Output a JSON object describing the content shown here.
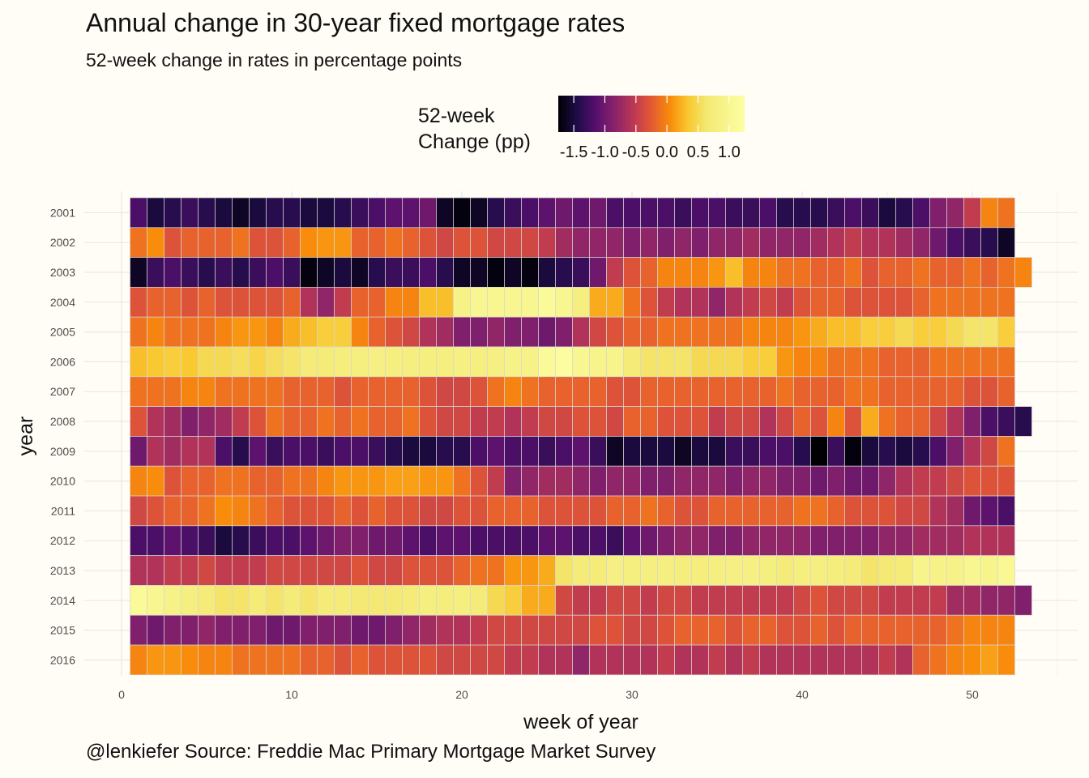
{
  "title": "Annual change in 30-year fixed mortgage rates",
  "subtitle": "52-week change in rates in percentage points",
  "caption": "@lenkiefer Source: Freddie Mac Primary Mortgage Market Survey",
  "legend": {
    "title_line1": "52-week",
    "title_line2": "Change (pp)",
    "labels": [
      "-1.5",
      "-1.0",
      "-0.5",
      "0.0",
      "0.5",
      "1.0"
    ],
    "palette": "inferno",
    "range": [
      -1.75,
      1.25
    ],
    "placement": "top"
  },
  "chart_data": {
    "type": "heatmap",
    "title": "Annual change in 30-year fixed mortgage rates",
    "subtitle": "52-week change in rates in percentage points",
    "xlabel": "week of year",
    "ylabel": "year",
    "x_ticks": [
      0,
      10,
      20,
      30,
      40,
      50
    ],
    "xlim": [
      0,
      55
    ],
    "grid": true,
    "colorbar_title": "52-week Change (pp)",
    "color_range": [
      -1.75,
      1.25
    ],
    "years": [
      "2001",
      "2002",
      "2003",
      "2004",
      "2005",
      "2006",
      "2007",
      "2008",
      "2009",
      "2010",
      "2011",
      "2012",
      "2013",
      "2014",
      "2015",
      "2016"
    ],
    "weeks_per_year": [
      52,
      52,
      53,
      52,
      52,
      52,
      52,
      53,
      52,
      52,
      52,
      52,
      52,
      53,
      52,
      52
    ],
    "series": [
      {
        "year": "2001",
        "values": [
          -1.2,
          -1.5,
          -1.4,
          -1.3,
          -1.4,
          -1.5,
          -1.6,
          -1.5,
          -1.4,
          -1.4,
          -1.5,
          -1.5,
          -1.4,
          -1.3,
          -1.2,
          -1.1,
          -1.1,
          -1.0,
          -1.6,
          -1.7,
          -1.6,
          -1.4,
          -1.3,
          -1.2,
          -1.1,
          -1.0,
          -1.1,
          -1.0,
          -1.2,
          -1.2,
          -1.2,
          -1.2,
          -1.3,
          -1.2,
          -1.2,
          -1.3,
          -1.3,
          -1.2,
          -1.4,
          -1.4,
          -1.4,
          -1.3,
          -1.2,
          -1.3,
          -1.5,
          -1.4,
          -1.2,
          -0.9,
          -0.8,
          -0.5,
          0.0,
          -0.1
        ]
      },
      {
        "year": "2002",
        "values": [
          -0.1,
          0.05,
          -0.3,
          -0.2,
          -0.2,
          -0.2,
          -0.1,
          -0.3,
          -0.3,
          -0.2,
          0.05,
          0.1,
          0.1,
          -0.2,
          -0.2,
          -0.1,
          -0.2,
          -0.3,
          -0.4,
          -0.3,
          -0.3,
          -0.4,
          -0.4,
          -0.4,
          -0.5,
          -0.7,
          -0.8,
          -0.8,
          -0.8,
          -0.9,
          -0.8,
          -0.9,
          -0.8,
          -0.9,
          -0.8,
          -0.8,
          -0.7,
          -0.8,
          -0.8,
          -0.8,
          -0.7,
          -0.6,
          -0.5,
          -0.6,
          -0.6,
          -0.7,
          -0.8,
          -1.0,
          -1.2,
          -1.3,
          -1.4,
          -1.6
        ]
      },
      {
        "year": "2003",
        "values": [
          -1.6,
          -1.3,
          -1.2,
          -1.3,
          -1.4,
          -1.3,
          -1.4,
          -1.3,
          -1.2,
          -1.3,
          -1.7,
          -1.6,
          -1.5,
          -1.6,
          -1.4,
          -1.3,
          -1.3,
          -1.2,
          -1.4,
          -1.6,
          -1.6,
          -1.7,
          -1.6,
          -1.7,
          -1.5,
          -1.4,
          -1.3,
          -1.0,
          -0.5,
          -0.3,
          -0.2,
          0.0,
          0.0,
          0.0,
          0.1,
          0.3,
          0.0,
          0.0,
          -0.1,
          -0.1,
          -0.2,
          -0.2,
          -0.1,
          -0.3,
          -0.2,
          -0.2,
          -0.1,
          -0.2,
          -0.2,
          -0.1,
          -0.2,
          -0.1,
          0.0
        ]
      },
      {
        "year": "2004",
        "values": [
          -0.3,
          -0.2,
          -0.2,
          -0.3,
          -0.2,
          -0.3,
          -0.3,
          -0.3,
          -0.3,
          -0.2,
          -0.6,
          -0.8,
          -0.5,
          -0.2,
          -0.2,
          0.0,
          0.0,
          0.3,
          0.3,
          0.9,
          1.0,
          1.0,
          1.0,
          1.0,
          1.1,
          1.0,
          0.8,
          0.2,
          0.2,
          -0.1,
          -0.3,
          -0.5,
          -0.6,
          -0.6,
          -0.8,
          -0.6,
          -0.5,
          -0.4,
          -0.5,
          -0.3,
          -0.2,
          -0.2,
          -0.3,
          -0.3,
          -0.3,
          -0.3,
          -0.2,
          -0.1,
          -0.1,
          -0.1,
          -0.1,
          -0.1
        ]
      },
      {
        "year": "2005",
        "values": [
          -0.1,
          0.0,
          -0.1,
          -0.1,
          -0.1,
          0.0,
          0.1,
          0.1,
          0.0,
          0.2,
          0.3,
          0.4,
          0.4,
          0.0,
          -0.2,
          -0.3,
          -0.4,
          -0.6,
          -0.7,
          -0.9,
          -0.9,
          -0.8,
          -0.9,
          -0.9,
          -1.0,
          -0.9,
          -0.6,
          -0.4,
          -0.3,
          -0.2,
          -0.2,
          -0.1,
          -0.1,
          -0.1,
          -0.1,
          -0.1,
          0.0,
          0.0,
          0.0,
          0.1,
          0.2,
          0.3,
          0.3,
          0.4,
          0.4,
          0.5,
          0.4,
          0.4,
          0.5,
          0.6,
          0.6,
          0.4
        ]
      },
      {
        "year": "2006",
        "values": [
          0.3,
          0.35,
          0.4,
          0.35,
          0.5,
          0.5,
          0.55,
          0.45,
          0.55,
          0.6,
          0.7,
          0.7,
          0.75,
          0.8,
          0.85,
          0.8,
          0.8,
          0.8,
          0.8,
          0.85,
          0.8,
          0.85,
          0.9,
          0.9,
          1.1,
          1.2,
          1.0,
          0.95,
          0.95,
          0.7,
          0.6,
          0.6,
          0.6,
          0.5,
          0.5,
          0.5,
          0.4,
          0.4,
          0.1,
          0.0,
          0.0,
          -0.1,
          -0.1,
          -0.1,
          -0.2,
          -0.2,
          -0.2,
          -0.1,
          -0.1,
          -0.1,
          -0.1,
          -0.1
        ]
      },
      {
        "year": "2007",
        "values": [
          -0.1,
          -0.1,
          -0.1,
          0.0,
          0.0,
          -0.1,
          -0.1,
          -0.1,
          -0.1,
          -0.2,
          -0.2,
          -0.2,
          -0.3,
          -0.2,
          -0.2,
          -0.2,
          -0.2,
          -0.3,
          -0.4,
          -0.4,
          -0.3,
          -0.1,
          0.0,
          -0.1,
          -0.2,
          -0.2,
          -0.2,
          -0.2,
          -0.3,
          -0.3,
          -0.2,
          -0.2,
          -0.2,
          -0.2,
          -0.2,
          -0.2,
          -0.2,
          -0.2,
          -0.1,
          -0.2,
          -0.2,
          -0.2,
          -0.1,
          -0.1,
          -0.2,
          -0.2,
          -0.2,
          -0.2,
          -0.2,
          -0.3,
          -0.3,
          -0.2
        ]
      },
      {
        "year": "2008",
        "values": [
          -0.3,
          -0.6,
          -0.7,
          -0.9,
          -0.8,
          -0.7,
          -0.5,
          -0.3,
          -0.1,
          -0.2,
          -0.2,
          -0.1,
          -0.2,
          -0.1,
          -0.2,
          -0.2,
          -0.1,
          -0.3,
          -0.4,
          -0.4,
          -0.5,
          -0.5,
          -0.6,
          -0.5,
          -0.4,
          -0.4,
          -0.3,
          -0.3,
          -0.4,
          -0.2,
          -0.2,
          -0.3,
          -0.3,
          -0.3,
          -0.5,
          -0.4,
          -0.4,
          -0.6,
          -0.4,
          -0.2,
          -0.3,
          0.0,
          -0.3,
          0.2,
          -0.1,
          -0.2,
          -0.2,
          -0.4,
          -0.6,
          -0.9,
          -1.2,
          -1.3,
          -1.4
        ]
      },
      {
        "year": "2009",
        "values": [
          -1.0,
          -0.6,
          -0.7,
          -0.6,
          -0.6,
          -1.2,
          -1.4,
          -1.1,
          -1.3,
          -1.2,
          -1.2,
          -1.3,
          -1.2,
          -1.2,
          -1.3,
          -1.4,
          -1.5,
          -1.5,
          -1.4,
          -1.4,
          -1.2,
          -1.1,
          -1.2,
          -1.2,
          -1.3,
          -1.2,
          -1.1,
          -1.3,
          -1.6,
          -1.5,
          -1.5,
          -1.5,
          -1.6,
          -1.5,
          -1.5,
          -1.3,
          -1.3,
          -1.2,
          -1.2,
          -1.4,
          -1.75,
          -1.3,
          -1.7,
          -1.5,
          -1.4,
          -1.5,
          -1.4,
          -1.2,
          -0.9,
          -0.6,
          -0.4,
          -0.1
        ]
      },
      {
        "year": "2010",
        "values": [
          0.0,
          0.05,
          -0.3,
          -0.2,
          -0.2,
          -0.1,
          -0.1,
          -0.2,
          -0.2,
          -0.1,
          -0.1,
          0.0,
          0.1,
          0.1,
          0.1,
          0.15,
          0.15,
          0.1,
          0.1,
          -0.1,
          -0.3,
          -0.5,
          -0.9,
          -0.8,
          -0.7,
          -0.7,
          -0.8,
          -0.9,
          -0.8,
          -0.8,
          -0.9,
          -0.9,
          -0.8,
          -0.8,
          -0.8,
          -0.9,
          -0.8,
          -0.8,
          -0.9,
          -0.9,
          -1.0,
          -0.9,
          -1.0,
          -1.0,
          -0.8,
          -0.6,
          -0.5,
          -0.5,
          -0.4,
          -0.3,
          -0.3,
          -0.3
        ]
      },
      {
        "year": "2011",
        "values": [
          -0.4,
          -0.3,
          -0.2,
          -0.2,
          -0.1,
          0.05,
          0.0,
          -0.1,
          -0.2,
          -0.3,
          -0.3,
          -0.3,
          -0.2,
          -0.3,
          -0.2,
          -0.3,
          -0.3,
          -0.4,
          -0.4,
          -0.3,
          -0.3,
          -0.2,
          -0.2,
          -0.2,
          -0.3,
          -0.3,
          -0.3,
          -0.3,
          -0.2,
          -0.2,
          -0.1,
          -0.2,
          -0.3,
          -0.3,
          -0.2,
          -0.2,
          -0.2,
          -0.2,
          -0.2,
          -0.1,
          -0.1,
          -0.2,
          -0.3,
          -0.3,
          -0.3,
          -0.4,
          -0.4,
          -0.6,
          -0.7,
          -1.0,
          -1.1,
          -1.2
        ]
      },
      {
        "year": "2012",
        "values": [
          -1.2,
          -1.2,
          -1.1,
          -1.2,
          -1.3,
          -1.5,
          -1.4,
          -1.3,
          -1.2,
          -1.2,
          -1.1,
          -1.0,
          -0.9,
          -0.9,
          -1.0,
          -1.0,
          -1.1,
          -1.2,
          -1.1,
          -1.1,
          -1.2,
          -1.2,
          -1.2,
          -1.2,
          -1.1,
          -1.1,
          -1.2,
          -1.2,
          -1.3,
          -1.1,
          -1.0,
          -0.9,
          -0.8,
          -0.8,
          -0.9,
          -0.9,
          -0.8,
          -0.8,
          -0.8,
          -0.8,
          -0.9,
          -0.9,
          -0.9,
          -0.9,
          -0.8,
          -0.8,
          -0.7,
          -0.7,
          -0.7,
          -0.6,
          -0.6,
          -0.6
        ]
      },
      {
        "year": "2013",
        "values": [
          -0.6,
          -0.6,
          -0.5,
          -0.5,
          -0.4,
          -0.5,
          -0.5,
          -0.5,
          -0.4,
          -0.4,
          -0.4,
          -0.4,
          -0.4,
          -0.3,
          -0.4,
          -0.4,
          -0.3,
          -0.3,
          -0.3,
          -0.2,
          -0.1,
          -0.1,
          0.1,
          0.1,
          0.2,
          0.6,
          0.7,
          0.7,
          0.85,
          0.8,
          0.8,
          0.8,
          0.75,
          0.75,
          0.8,
          0.85,
          0.85,
          0.8,
          0.7,
          0.8,
          0.8,
          0.75,
          0.7,
          0.6,
          0.65,
          0.7,
          0.95,
          0.9,
          0.9,
          1.0,
          0.95,
          1.05
        ]
      },
      {
        "year": "2014",
        "values": [
          1.1,
          1.0,
          0.9,
          0.8,
          0.7,
          0.6,
          0.6,
          0.7,
          0.6,
          0.7,
          0.6,
          0.7,
          0.7,
          0.65,
          0.65,
          0.65,
          0.7,
          0.8,
          0.75,
          0.8,
          0.7,
          0.5,
          0.4,
          0.2,
          0.2,
          -0.4,
          -0.5,
          -0.5,
          -0.4,
          -0.4,
          -0.5,
          -0.4,
          -0.4,
          -0.5,
          -0.5,
          -0.5,
          -0.5,
          -0.5,
          -0.5,
          -0.4,
          -0.3,
          -0.4,
          -0.4,
          -0.4,
          -0.5,
          -0.5,
          -0.5,
          -0.5,
          -0.7,
          -0.7,
          -0.8,
          -0.8,
          -0.9
        ]
      },
      {
        "year": "2015",
        "values": [
          -0.9,
          -1.0,
          -0.9,
          -0.9,
          -0.8,
          -0.9,
          -0.9,
          -0.9,
          -1.0,
          -1.0,
          -0.9,
          -0.9,
          -0.9,
          -1.0,
          -1.0,
          -0.9,
          -0.8,
          -0.7,
          -0.6,
          -0.6,
          -0.5,
          -0.4,
          -0.4,
          -0.4,
          -0.4,
          -0.4,
          -0.4,
          -0.3,
          -0.3,
          -0.4,
          -0.4,
          -0.3,
          -0.2,
          -0.2,
          -0.2,
          -0.3,
          -0.2,
          -0.2,
          -0.3,
          -0.3,
          -0.2,
          -0.3,
          -0.2,
          -0.2,
          -0.2,
          -0.2,
          -0.2,
          -0.2,
          -0.1,
          0.0,
          0.0,
          0.0
        ]
      },
      {
        "year": "2016",
        "values": [
          0.0,
          0.1,
          0.1,
          0.05,
          0.0,
          0.0,
          -0.1,
          -0.1,
          -0.1,
          -0.1,
          -0.2,
          -0.2,
          -0.3,
          -0.2,
          -0.3,
          -0.3,
          -0.3,
          -0.3,
          -0.4,
          -0.4,
          -0.4,
          -0.4,
          -0.5,
          -0.5,
          -0.6,
          -0.6,
          -0.8,
          -0.6,
          -0.6,
          -0.6,
          -0.6,
          -0.5,
          -0.6,
          -0.6,
          -0.5,
          -0.6,
          -0.5,
          -0.6,
          -0.6,
          -0.6,
          -0.6,
          -0.6,
          -0.6,
          -0.6,
          -0.5,
          -0.6,
          -0.2,
          -0.1,
          0.0,
          0.05,
          0.15,
          0.05
        ]
      }
    ]
  }
}
